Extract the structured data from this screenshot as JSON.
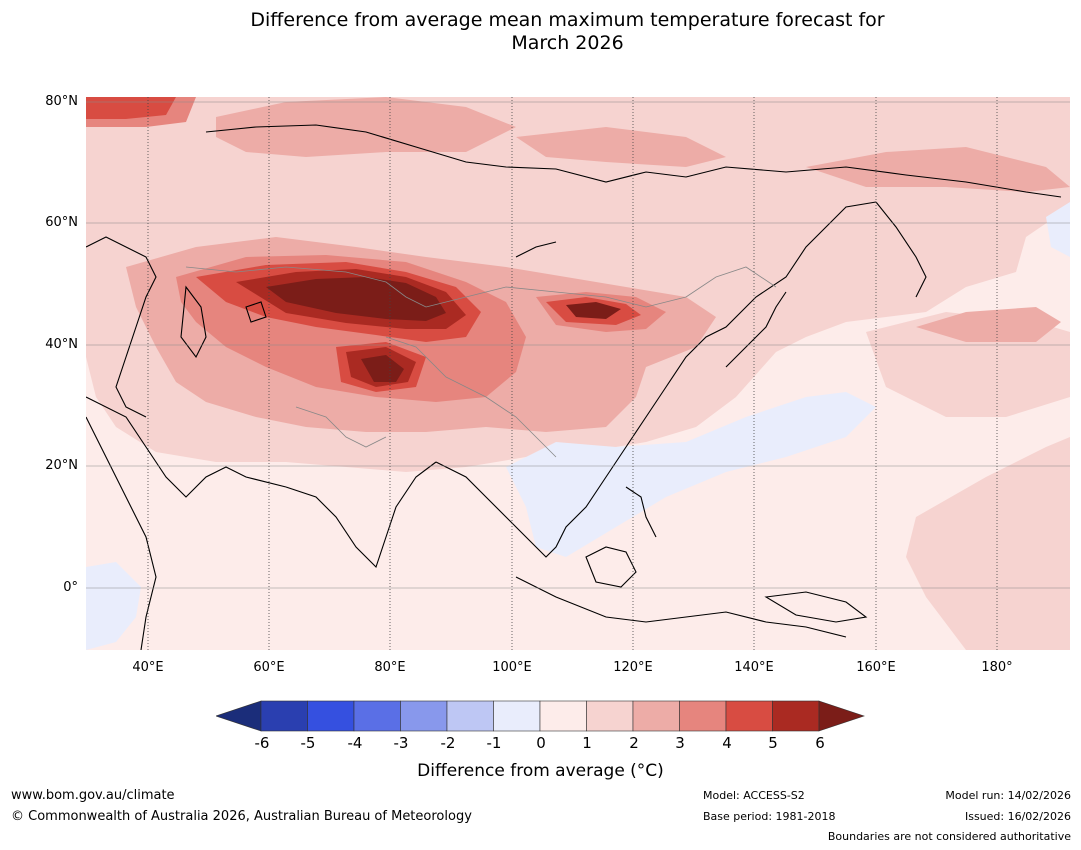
{
  "title": {
    "line1": "Difference from average mean maximum temperature forecast for",
    "line2": "March 2026"
  },
  "latitude_labels": [
    "80°N",
    "60°N",
    "40°N",
    "20°N",
    "0°"
  ],
  "longitude_labels": [
    "40°E",
    "60°E",
    "80°E",
    "100°E",
    "120°E",
    "140°E",
    "160°E",
    "180°"
  ],
  "colorbar": {
    "ticks": [
      "-6",
      "-5",
      "-4",
      "-3",
      "-2",
      "-1",
      "0",
      "1",
      "2",
      "3",
      "4",
      "5",
      "6"
    ],
    "colors": [
      "#1b2d7a",
      "#2a3fb0",
      "#3550e0",
      "#5a6fe6",
      "#8898ec",
      "#bec7f4",
      "#e9edfc",
      "#fdecea",
      "#f6d3d0",
      "#edaca7",
      "#e6857e",
      "#d84c42",
      "#aa2a22",
      "#7b1d18"
    ],
    "label": "Difference from average (°C)"
  },
  "footer": {
    "website": "www.bom.gov.au/climate",
    "copyright": "© Commonwealth of Australia 2026, Australian Bureau of Meteorology",
    "model": "Model: ACCESS-S2",
    "base_period": "Base period: 1981-2018",
    "model_run": "Model run: 14/02/2026",
    "issued": "Issued: 16/02/2026",
    "disclaimer": "Boundaries are not considered authoritative"
  }
}
